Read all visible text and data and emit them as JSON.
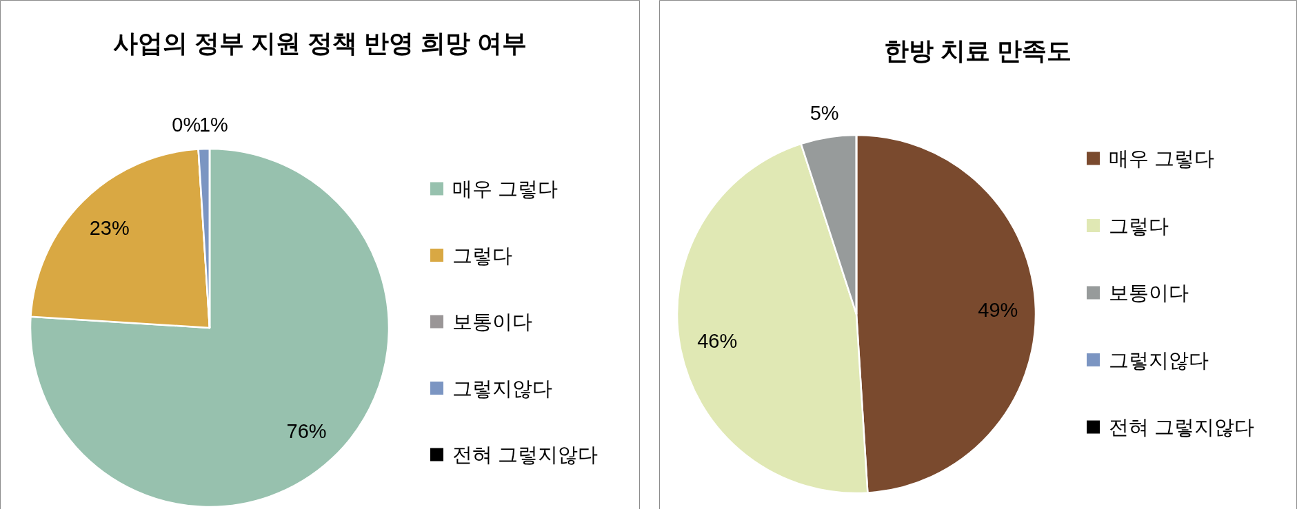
{
  "chart_data": [
    {
      "type": "pie",
      "title": "사업의 정부 지원 정책 반영 희망 여부",
      "categories": [
        "매우 그렇다",
        "그렇다",
        "보통이다",
        "그렇지않다",
        "전혀 그렇지않다"
      ],
      "values": [
        76,
        23,
        0,
        1,
        0
      ],
      "colors": [
        "#97c1ae",
        "#d9a843",
        "#9a9697",
        "#7b95c2",
        "#000000"
      ],
      "value_labels": [
        "76%",
        "23%",
        "0%",
        "1%",
        null
      ],
      "legend": "right"
    },
    {
      "type": "pie",
      "title": "한방 치료 만족도",
      "categories": [
        "매우 그렇다",
        "그렇다",
        "보통이다",
        "그렇지않다",
        "전혀 그렇지않다"
      ],
      "values": [
        49,
        46,
        5,
        0,
        0
      ],
      "colors": [
        "#7a4a2e",
        "#e0e8b4",
        "#979b9b",
        "#7b95c2",
        "#000000"
      ],
      "value_labels": [
        "49%",
        "46%",
        "5%",
        null,
        null
      ],
      "legend": "right"
    }
  ]
}
